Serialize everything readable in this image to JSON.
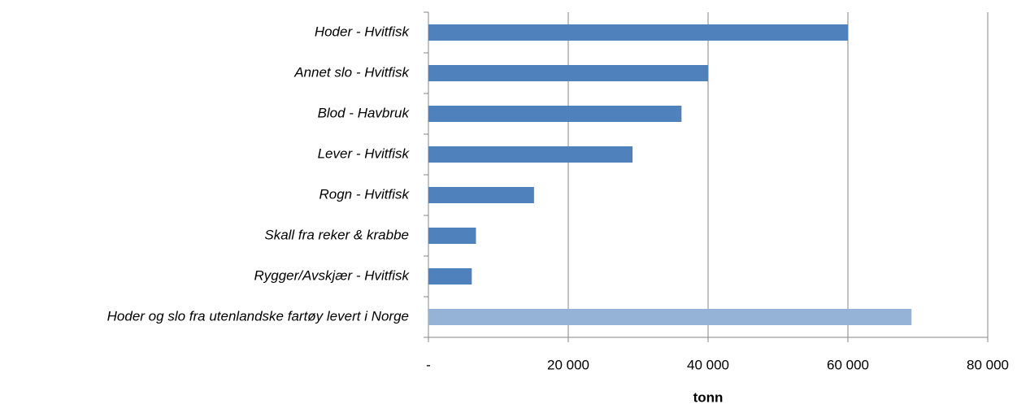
{
  "chart_data": {
    "type": "barh",
    "categories": [
      "Hoder - Hvitfisk",
      "Annet slo - Hvitfisk",
      "Blod - Havbruk",
      "Lever - Hvitfisk",
      "Rogn - Hvitfisk",
      "Skall fra reker & krabbe",
      "Rygger/Avskjær - Hvitfisk",
      "Hoder og slo fra utenlandske fartøy levert i Norge"
    ],
    "values": [
      60000,
      40000,
      36200,
      29200,
      15100,
      6800,
      6200,
      69100
    ],
    "colors": [
      "#4f81bd",
      "#4f81bd",
      "#4f81bd",
      "#4f81bd",
      "#4f81bd",
      "#4f81bd",
      "#4f81bd",
      "#95b3d7"
    ],
    "xlabel": "tonn",
    "xlim": [
      0,
      80000
    ],
    "xticks": [
      {
        "value": 0,
        "label": "-"
      },
      {
        "value": 20000,
        "label": "20 000"
      },
      {
        "value": 40000,
        "label": "40 000"
      },
      {
        "value": 60000,
        "label": "60 000"
      },
      {
        "value": 80000,
        "label": "80 000"
      }
    ],
    "grid": true
  }
}
